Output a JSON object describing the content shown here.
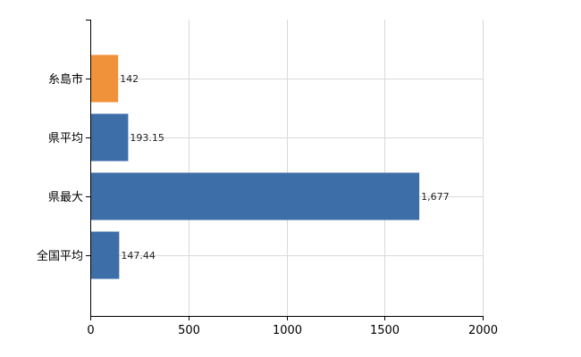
{
  "chart_data": {
    "type": "bar",
    "orientation": "horizontal",
    "categories": [
      "糸島市",
      "県平均",
      "県最大",
      "全国平均"
    ],
    "values": [
      142,
      193.15,
      1677,
      147.44
    ],
    "value_labels": [
      "142",
      "193.15",
      "1,677",
      "147.44"
    ],
    "xlim": [
      0,
      2000
    ],
    "xticks": [
      0,
      500,
      1000,
      1500,
      2000
    ],
    "xtick_labels": [
      "0",
      "500",
      "1000",
      "1500",
      "2000"
    ],
    "grid": true,
    "legend": "none",
    "colors": {
      "highlight": "#f0923a",
      "default": "#3e6ea8",
      "grid": "#d9d9d9",
      "axis": "#000000"
    },
    "highlight_index": 0,
    "title": "",
    "xlabel": "",
    "ylabel": ""
  }
}
